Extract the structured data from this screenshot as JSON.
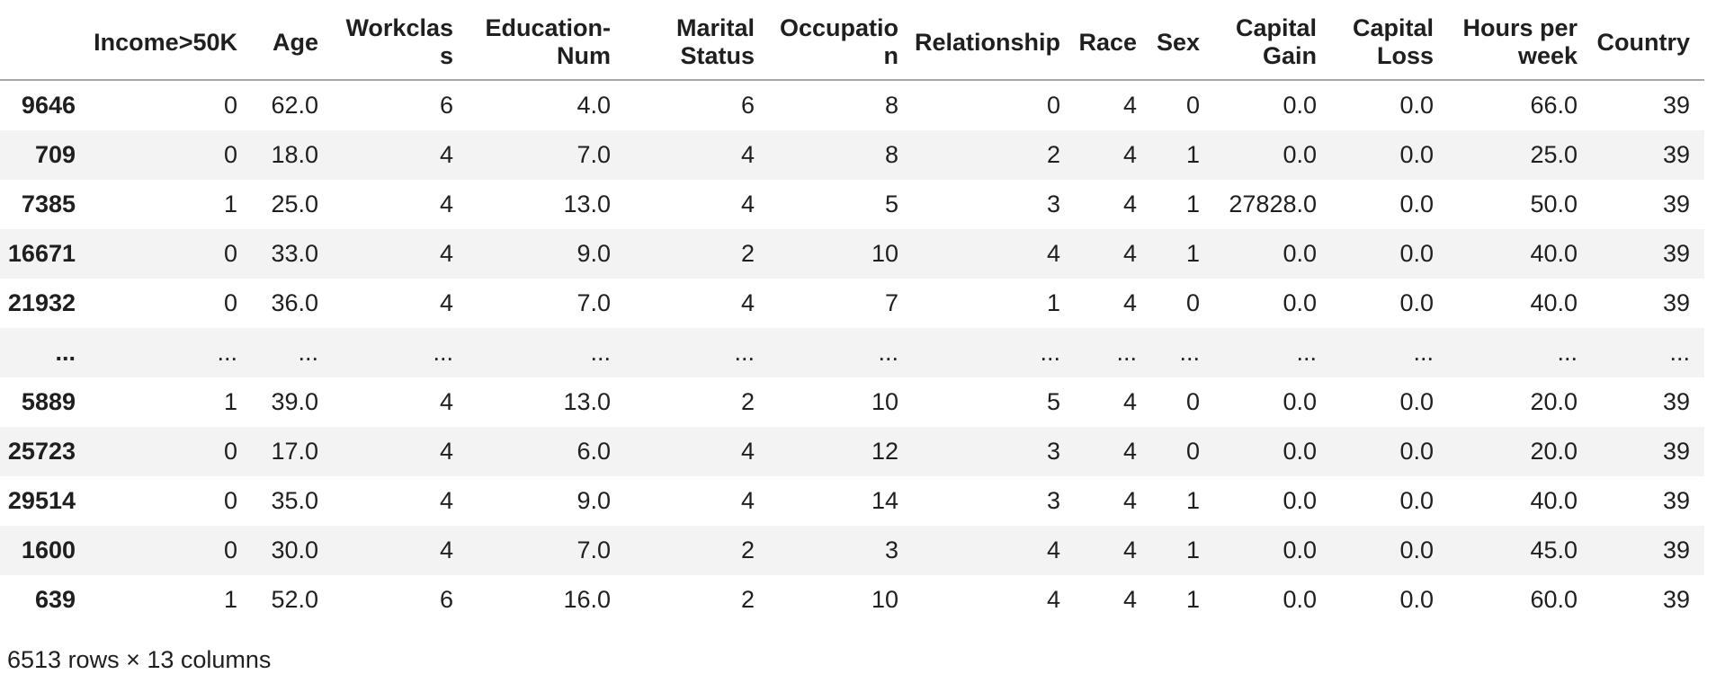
{
  "table": {
    "index_header": "",
    "columns": [
      "Income>50K",
      "Age",
      "Workclass",
      "Education-Num",
      "Marital Status",
      "Occupation",
      "Relationship",
      "Race",
      "Sex",
      "Capital Gain",
      "Capital Loss",
      "Hours per week",
      "Country"
    ],
    "rows": [
      {
        "index": "9646",
        "values": [
          "0",
          "62.0",
          "6",
          "4.0",
          "6",
          "8",
          "0",
          "4",
          "0",
          "0.0",
          "0.0",
          "66.0",
          "39"
        ]
      },
      {
        "index": "709",
        "values": [
          "0",
          "18.0",
          "4",
          "7.0",
          "4",
          "8",
          "2",
          "4",
          "1",
          "0.0",
          "0.0",
          "25.0",
          "39"
        ]
      },
      {
        "index": "7385",
        "values": [
          "1",
          "25.0",
          "4",
          "13.0",
          "4",
          "5",
          "3",
          "4",
          "1",
          "27828.0",
          "0.0",
          "50.0",
          "39"
        ]
      },
      {
        "index": "16671",
        "values": [
          "0",
          "33.0",
          "4",
          "9.0",
          "2",
          "10",
          "4",
          "4",
          "1",
          "0.0",
          "0.0",
          "40.0",
          "39"
        ]
      },
      {
        "index": "21932",
        "values": [
          "0",
          "36.0",
          "4",
          "7.0",
          "4",
          "7",
          "1",
          "4",
          "0",
          "0.0",
          "0.0",
          "40.0",
          "39"
        ]
      },
      {
        "index": "...",
        "values": [
          "...",
          "...",
          "...",
          "...",
          "...",
          "...",
          "...",
          "...",
          "...",
          "...",
          "...",
          "...",
          "..."
        ]
      },
      {
        "index": "5889",
        "values": [
          "1",
          "39.0",
          "4",
          "13.0",
          "2",
          "10",
          "5",
          "4",
          "0",
          "0.0",
          "0.0",
          "20.0",
          "39"
        ]
      },
      {
        "index": "25723",
        "values": [
          "0",
          "17.0",
          "4",
          "6.0",
          "4",
          "12",
          "3",
          "4",
          "0",
          "0.0",
          "0.0",
          "20.0",
          "39"
        ]
      },
      {
        "index": "29514",
        "values": [
          "0",
          "35.0",
          "4",
          "9.0",
          "4",
          "14",
          "3",
          "4",
          "1",
          "0.0",
          "0.0",
          "40.0",
          "39"
        ]
      },
      {
        "index": "1600",
        "values": [
          "0",
          "30.0",
          "4",
          "7.0",
          "2",
          "3",
          "4",
          "4",
          "1",
          "0.0",
          "0.0",
          "45.0",
          "39"
        ]
      },
      {
        "index": "639",
        "values": [
          "1",
          "52.0",
          "6",
          "16.0",
          "2",
          "10",
          "4",
          "4",
          "1",
          "0.0",
          "0.0",
          "60.0",
          "39"
        ]
      }
    ],
    "footer": "6513 rows × 13 columns"
  },
  "colors": {
    "text": "#1f1f1f",
    "row_stripe": "#f3f3f3",
    "header_rule": "#a6a6a6",
    "background": "#ffffff"
  }
}
